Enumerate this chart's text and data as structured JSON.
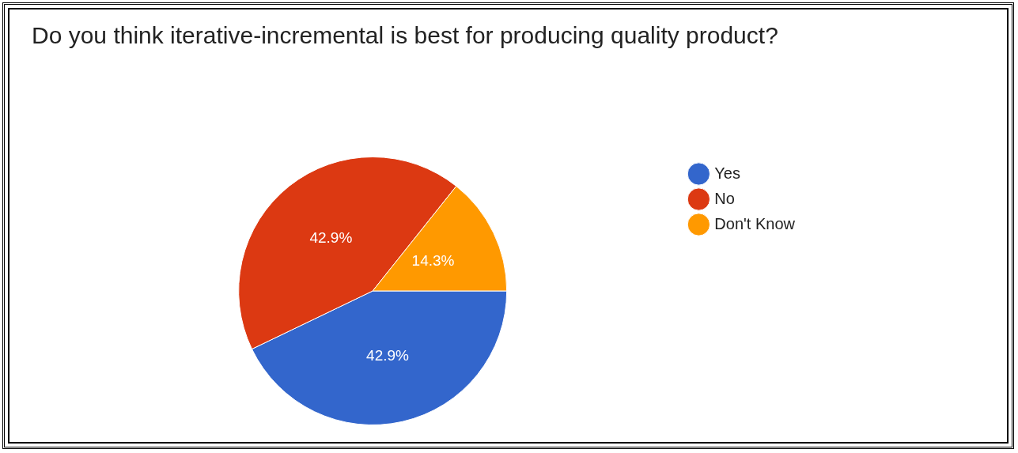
{
  "chart_data": {
    "type": "pie",
    "title": "Do you think iterative-incremental is best for producing quality product?",
    "categories": [
      "Yes",
      "No",
      "Don't Know"
    ],
    "values": [
      42.9,
      42.9,
      14.3
    ],
    "colors": [
      "#3366cc",
      "#dc3912",
      "#ff9900"
    ],
    "value_labels": [
      "42.9%",
      "42.9%",
      "14.3%"
    ],
    "legend": "right"
  }
}
